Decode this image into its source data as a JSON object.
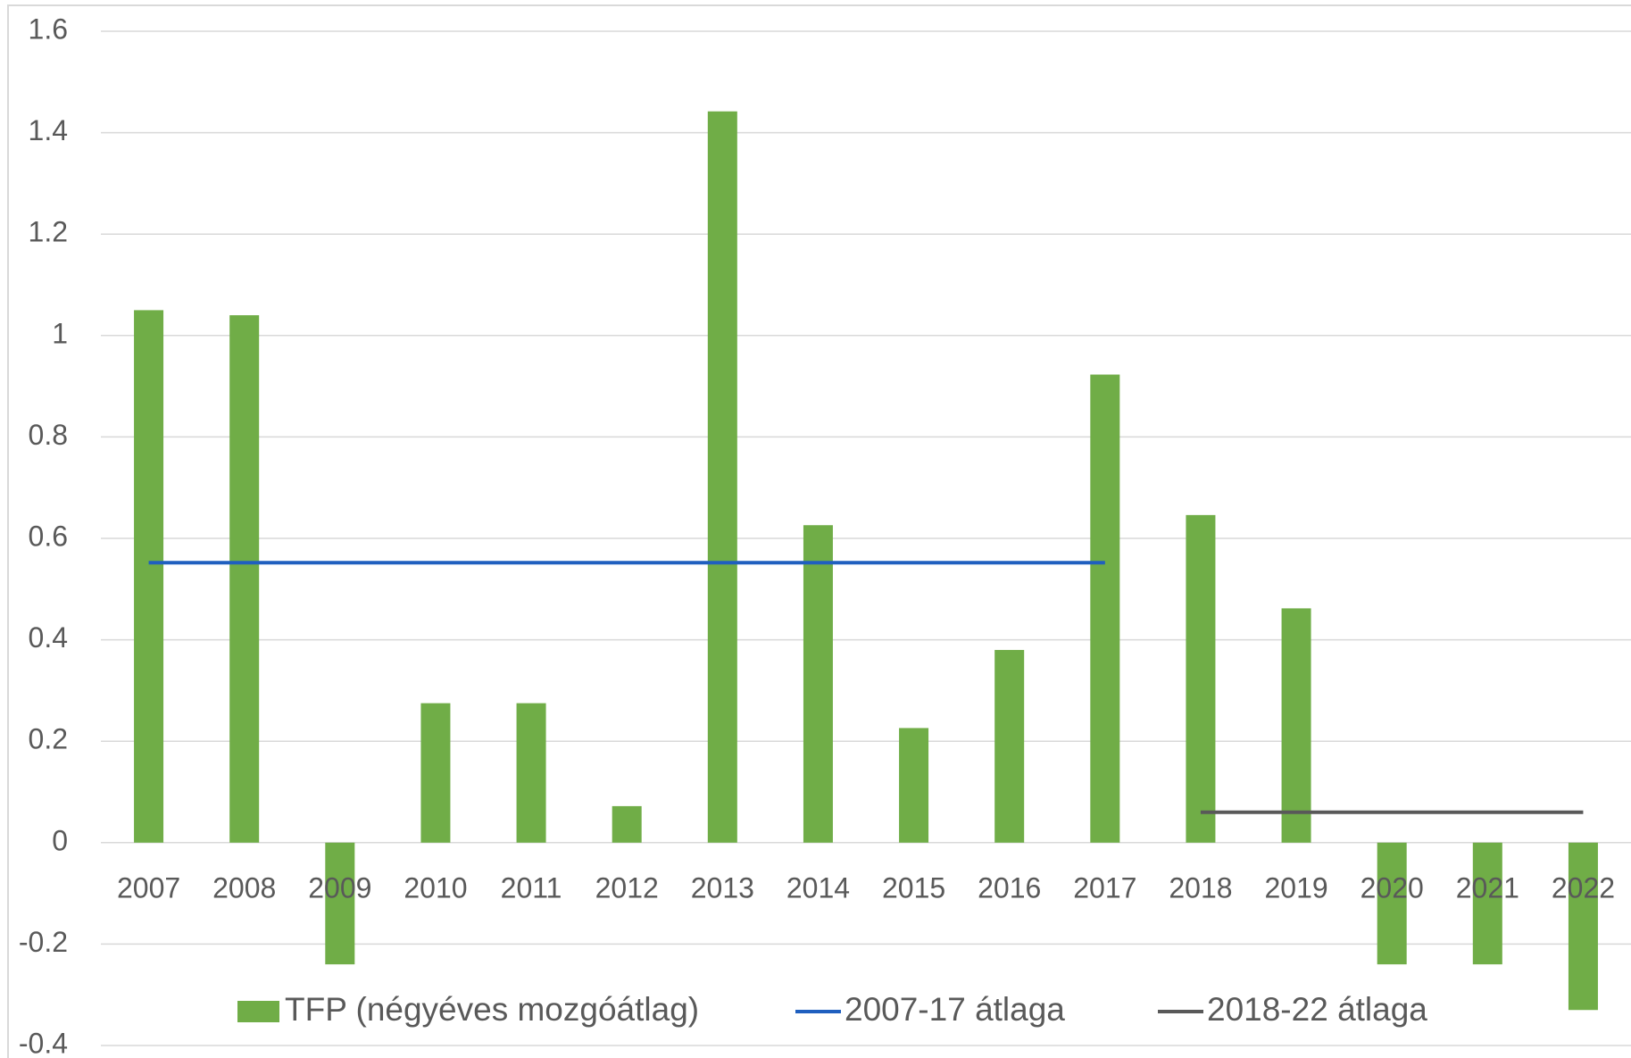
{
  "chart_data": {
    "type": "bar",
    "categories": [
      "2007",
      "2008",
      "2009",
      "2010",
      "2011",
      "2012",
      "2013",
      "2014",
      "2015",
      "2016",
      "2017",
      "2018",
      "2019",
      "2020",
      "2021",
      "2022"
    ],
    "series": [
      {
        "name": "TFP (négyéves mozgóátlag)",
        "type": "bar",
        "color": "#70ad47",
        "values": [
          1.05,
          1.04,
          -0.24,
          0.275,
          0.275,
          0.072,
          1.442,
          0.626,
          0.226,
          0.38,
          0.923,
          0.646,
          0.462,
          -0.24,
          -0.24,
          -0.33
        ]
      },
      {
        "name": "2007-17 átlaga",
        "type": "line",
        "color": "#1f5fbf",
        "values": [
          0.552,
          0.552,
          0.552,
          0.552,
          0.552,
          0.552,
          0.552,
          0.552,
          0.552,
          0.552,
          0.552,
          null,
          null,
          null,
          null,
          null
        ]
      },
      {
        "name": "2018-22 átlaga",
        "type": "line",
        "color": "#595959",
        "values": [
          null,
          null,
          null,
          null,
          null,
          null,
          null,
          null,
          null,
          null,
          null,
          0.06,
          0.06,
          0.06,
          0.06,
          0.06
        ]
      }
    ],
    "ylim": [
      -0.4,
      1.6
    ],
    "yticks": [
      -0.4,
      -0.2,
      0,
      0.2,
      0.4,
      0.6,
      0.8,
      1,
      1.2,
      1.4,
      1.6
    ],
    "grid": true,
    "legend": "bottom"
  }
}
